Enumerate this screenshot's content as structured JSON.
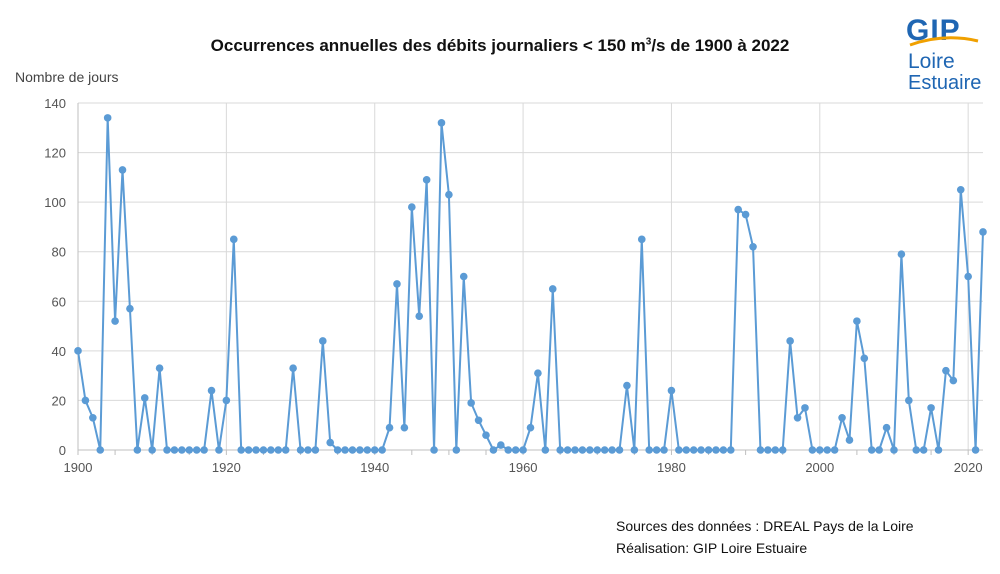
{
  "title": {
    "before": "Occurrences annuelles des débits journaliers < 150 m",
    "superscript": "3",
    "after": "/s de 1900 à 2022"
  },
  "logo": {
    "line1": "GIP",
    "line2": "Loire",
    "line3": "Estuaire",
    "color": "#1f66b3",
    "accent": "#f0a000"
  },
  "sources": {
    "line1": "Sources des données : DREAL Pays de la Loire",
    "line2": "Réalisation: GIP Loire Estuaire"
  },
  "chart_data": {
    "type": "line",
    "title": "Occurrences annuelles des débits journaliers < 150 m3/s de 1900 à 2022",
    "ylabel": "Nombre de jours",
    "xlabel": "",
    "xlim": [
      1900,
      2022
    ],
    "ylim": [
      0,
      140
    ],
    "xticks": [
      1900,
      1920,
      1940,
      1960,
      1980,
      2000,
      2020
    ],
    "yticks": [
      0,
      20,
      40,
      60,
      80,
      100,
      120,
      140
    ],
    "grid": true,
    "line_color": "#5b9bd5",
    "x": [
      1900,
      1901,
      1902,
      1903,
      1904,
      1905,
      1906,
      1907,
      1908,
      1909,
      1910,
      1911,
      1912,
      1913,
      1914,
      1915,
      1916,
      1917,
      1918,
      1919,
      1920,
      1921,
      1922,
      1923,
      1924,
      1925,
      1926,
      1927,
      1928,
      1929,
      1930,
      1931,
      1932,
      1933,
      1934,
      1935,
      1936,
      1937,
      1938,
      1939,
      1940,
      1941,
      1942,
      1943,
      1944,
      1945,
      1946,
      1947,
      1948,
      1949,
      1950,
      1951,
      1952,
      1953,
      1954,
      1955,
      1956,
      1957,
      1958,
      1959,
      1960,
      1961,
      1962,
      1963,
      1964,
      1965,
      1966,
      1967,
      1968,
      1969,
      1970,
      1971,
      1972,
      1973,
      1974,
      1975,
      1976,
      1977,
      1978,
      1979,
      1980,
      1981,
      1982,
      1983,
      1984,
      1985,
      1986,
      1987,
      1988,
      1989,
      1990,
      1991,
      1992,
      1993,
      1994,
      1995,
      1996,
      1997,
      1998,
      1999,
      2000,
      2001,
      2002,
      2003,
      2004,
      2005,
      2006,
      2007,
      2008,
      2009,
      2010,
      2011,
      2012,
      2013,
      2014,
      2015,
      2016,
      2017,
      2018,
      2019,
      2020,
      2021,
      2022
    ],
    "series": [
      {
        "values": [
          40,
          20,
          13,
          0,
          134,
          52,
          113,
          57,
          0,
          21,
          0,
          33,
          0,
          0,
          0,
          0,
          0,
          0,
          24,
          0,
          20,
          85,
          0,
          0,
          0,
          0,
          0,
          0,
          0,
          33,
          0,
          0,
          0,
          44,
          3,
          0,
          0,
          0,
          0,
          0,
          0,
          0,
          9,
          67,
          9,
          98,
          54,
          109,
          0,
          132,
          103,
          0,
          70,
          19,
          12,
          6,
          0,
          2,
          0,
          0,
          0,
          9,
          31,
          0,
          65,
          0,
          0,
          0,
          0,
          0,
          0,
          0,
          0,
          0,
          26,
          0,
          85,
          0,
          0,
          0,
          24,
          0,
          0,
          0,
          0,
          0,
          0,
          0,
          0,
          97,
          95,
          82,
          0,
          0,
          0,
          0,
          44,
          13,
          17,
          0,
          0,
          0,
          0,
          13,
          4,
          52,
          37,
          0,
          0,
          9,
          0,
          79,
          20,
          0,
          0,
          17,
          0,
          32,
          28,
          105,
          70,
          0,
          88
        ]
      }
    ]
  }
}
